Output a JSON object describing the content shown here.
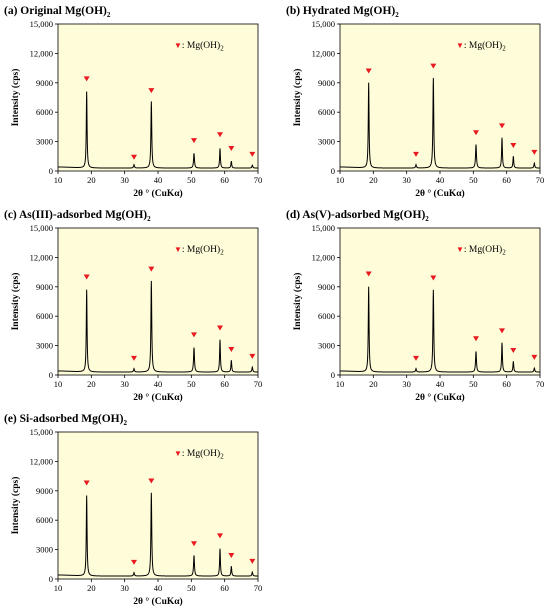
{
  "marker_color": "#e8191f",
  "plot_bg": "#fffcd9",
  "chart_data": [
    {
      "type": "line",
      "panel": "(a) Original Mg(OH)",
      "subscript": "2",
      "xlabel": "2θ ° (CuKα)",
      "ylabel": "Intensity (cps)",
      "xlim": [
        10,
        70
      ],
      "ylim": [
        0,
        15000
      ],
      "xticks": [
        "10",
        "20",
        "30",
        "40",
        "50",
        "60",
        "70"
      ],
      "yticks": [
        "0",
        "3000",
        "6000",
        "9000",
        "12,000",
        "15,000"
      ],
      "legend": "▼: Mg(OH)",
      "legend_sub": "2",
      "baseline": 300,
      "peaks": [
        {
          "x": 18.6,
          "y": 8100,
          "w": 0.28
        },
        {
          "x": 32.8,
          "y": 650,
          "w": 0.3
        },
        {
          "x": 38.0,
          "y": 7100,
          "w": 0.3
        },
        {
          "x": 50.8,
          "y": 1800,
          "w": 0.32
        },
        {
          "x": 58.6,
          "y": 2300,
          "w": 0.28
        },
        {
          "x": 62.0,
          "y": 1000,
          "w": 0.28
        },
        {
          "x": 68.3,
          "y": 600,
          "w": 0.3
        }
      ],
      "markers": [
        {
          "x": 18.6,
          "y": 9400
        },
        {
          "x": 32.8,
          "y": 1400
        },
        {
          "x": 38.0,
          "y": 8200
        },
        {
          "x": 50.8,
          "y": 3100
        },
        {
          "x": 58.6,
          "y": 3700
        },
        {
          "x": 62.0,
          "y": 2300
        },
        {
          "x": 68.3,
          "y": 1700
        }
      ]
    },
    {
      "type": "line",
      "panel": "(b) Hydrated Mg(OH)",
      "subscript": "2",
      "xlabel": "2θ ° (CuKα)",
      "ylabel": "Intensity (cps)",
      "xlim": [
        10,
        70
      ],
      "ylim": [
        0,
        15000
      ],
      "xticks": [
        "10",
        "20",
        "30",
        "40",
        "50",
        "60",
        "70"
      ],
      "yticks": [
        "0",
        "3000",
        "6000",
        "9000",
        "12,000",
        "15,000"
      ],
      "legend": "▼: Mg(OH)",
      "legend_sub": "2",
      "baseline": 300,
      "peaks": [
        {
          "x": 18.6,
          "y": 9000,
          "w": 0.28
        },
        {
          "x": 32.8,
          "y": 650,
          "w": 0.3
        },
        {
          "x": 38.0,
          "y": 9500,
          "w": 0.3
        },
        {
          "x": 50.8,
          "y": 2700,
          "w": 0.32
        },
        {
          "x": 58.6,
          "y": 3400,
          "w": 0.28
        },
        {
          "x": 62.0,
          "y": 1500,
          "w": 0.28
        },
        {
          "x": 68.3,
          "y": 800,
          "w": 0.3
        }
      ],
      "markers": [
        {
          "x": 18.6,
          "y": 10200
        },
        {
          "x": 32.8,
          "y": 1700
        },
        {
          "x": 38.0,
          "y": 10700
        },
        {
          "x": 50.8,
          "y": 3900
        },
        {
          "x": 58.6,
          "y": 4600
        },
        {
          "x": 62.0,
          "y": 2600
        },
        {
          "x": 68.3,
          "y": 1900
        }
      ]
    },
    {
      "type": "line",
      "panel": "(c) As(III)-adsorbed Mg(OH)",
      "subscript": "2",
      "xlabel": "2θ ° (CuKα)",
      "ylabel": "Intensity (cps)",
      "xlim": [
        10,
        70
      ],
      "ylim": [
        0,
        15000
      ],
      "xticks": [
        "10",
        "20",
        "30",
        "40",
        "50",
        "60",
        "70"
      ],
      "yticks": [
        "0",
        "3000",
        "6000",
        "9000",
        "12,000",
        "15,000"
      ],
      "legend": "▼: Mg(OH)",
      "legend_sub": "2",
      "baseline": 300,
      "peaks": [
        {
          "x": 18.6,
          "y": 8700,
          "w": 0.28
        },
        {
          "x": 32.8,
          "y": 650,
          "w": 0.3
        },
        {
          "x": 38.0,
          "y": 9600,
          "w": 0.3
        },
        {
          "x": 50.8,
          "y": 2800,
          "w": 0.32
        },
        {
          "x": 58.6,
          "y": 3600,
          "w": 0.28
        },
        {
          "x": 62.0,
          "y": 1500,
          "w": 0.28
        },
        {
          "x": 68.3,
          "y": 800,
          "w": 0.3
        }
      ],
      "markers": [
        {
          "x": 18.6,
          "y": 10000
        },
        {
          "x": 32.8,
          "y": 1700
        },
        {
          "x": 38.0,
          "y": 10800
        },
        {
          "x": 50.8,
          "y": 4100
        },
        {
          "x": 58.6,
          "y": 4800
        },
        {
          "x": 62.0,
          "y": 2600
        },
        {
          "x": 68.3,
          "y": 1900
        }
      ]
    },
    {
      "type": "line",
      "panel": "(d) As(V)-adsorbed Mg(OH)",
      "subscript": "2",
      "xlabel": "2θ ° (CuKα)",
      "ylabel": "Intensity (cps)",
      "xlim": [
        10,
        70
      ],
      "ylim": [
        0,
        15000
      ],
      "xticks": [
        "10",
        "20",
        "30",
        "40",
        "50",
        "60",
        "70"
      ],
      "yticks": [
        "0",
        "3000",
        "6000",
        "9000",
        "12,000",
        "15,000"
      ],
      "legend": "▼: Mg(OH)",
      "legend_sub": "2",
      "baseline": 300,
      "peaks": [
        {
          "x": 18.6,
          "y": 9000,
          "w": 0.28
        },
        {
          "x": 32.8,
          "y": 650,
          "w": 0.3
        },
        {
          "x": 38.0,
          "y": 8700,
          "w": 0.3
        },
        {
          "x": 50.8,
          "y": 2400,
          "w": 0.32
        },
        {
          "x": 58.6,
          "y": 3300,
          "w": 0.28
        },
        {
          "x": 62.0,
          "y": 1400,
          "w": 0.28
        },
        {
          "x": 68.3,
          "y": 700,
          "w": 0.3
        }
      ],
      "markers": [
        {
          "x": 18.6,
          "y": 10300
        },
        {
          "x": 32.8,
          "y": 1700
        },
        {
          "x": 38.0,
          "y": 9900
        },
        {
          "x": 50.8,
          "y": 3700
        },
        {
          "x": 58.6,
          "y": 4500
        },
        {
          "x": 62.0,
          "y": 2500
        },
        {
          "x": 68.3,
          "y": 1800
        }
      ]
    },
    {
      "type": "line",
      "panel": "(e) Si-adsorbed Mg(OH)",
      "subscript": "2",
      "xlabel": "2θ ° (CuKα)",
      "ylabel": "Intensity (cps)",
      "xlim": [
        10,
        70
      ],
      "ylim": [
        0,
        15000
      ],
      "xticks": [
        "10",
        "20",
        "30",
        "40",
        "50",
        "60",
        "70"
      ],
      "yticks": [
        "0",
        "3000",
        "6000",
        "9000",
        "12,000",
        "15,000"
      ],
      "legend": "▼: Mg(OH)",
      "legend_sub": "2",
      "baseline": 300,
      "peaks": [
        {
          "x": 18.6,
          "y": 8500,
          "w": 0.28
        },
        {
          "x": 32.8,
          "y": 650,
          "w": 0.3
        },
        {
          "x": 38.0,
          "y": 8800,
          "w": 0.3
        },
        {
          "x": 50.8,
          "y": 2400,
          "w": 0.32
        },
        {
          "x": 58.6,
          "y": 3100,
          "w": 0.28
        },
        {
          "x": 62.0,
          "y": 1300,
          "w": 0.28
        },
        {
          "x": 68.3,
          "y": 700,
          "w": 0.3
        }
      ],
      "markers": [
        {
          "x": 18.6,
          "y": 9800
        },
        {
          "x": 32.8,
          "y": 1700
        },
        {
          "x": 38.0,
          "y": 10000
        },
        {
          "x": 50.8,
          "y": 3600
        },
        {
          "x": 58.6,
          "y": 4400
        },
        {
          "x": 62.0,
          "y": 2400
        },
        {
          "x": 68.3,
          "y": 1800
        }
      ]
    }
  ]
}
